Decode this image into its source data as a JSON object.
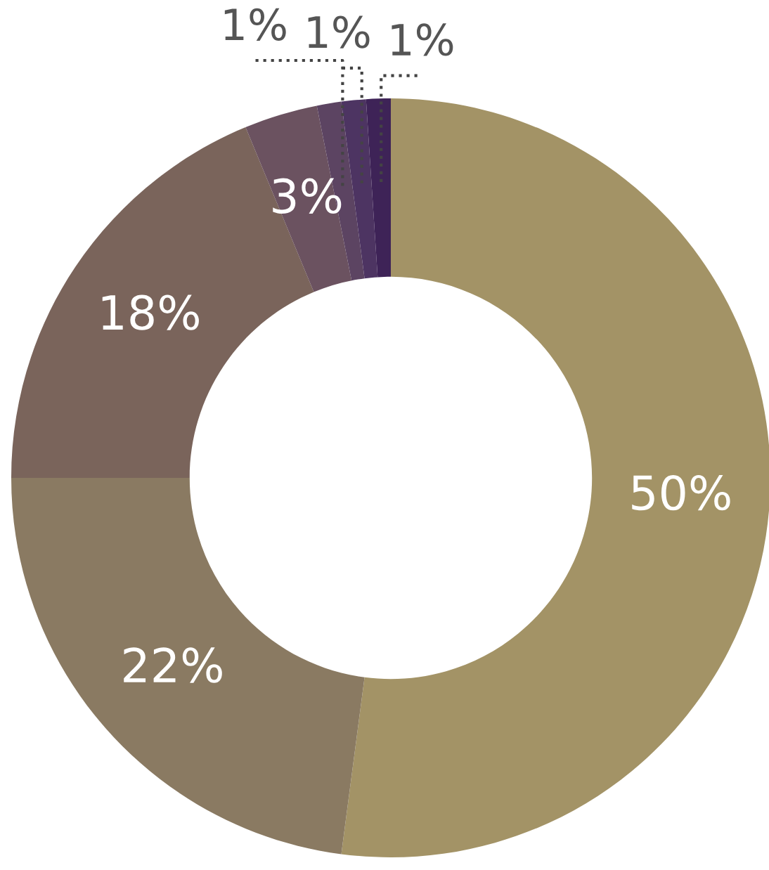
{
  "chart_data": {
    "type": "donut",
    "categories": [
      null,
      null,
      null,
      null,
      null,
      null,
      null
    ],
    "values": [
      50,
      22,
      18,
      3,
      1,
      1,
      1
    ],
    "colors": [
      "#a39366",
      "#8a7a62",
      "#7a645b",
      "#6b5260",
      "#5c4462",
      "#4d3462",
      "#3e2357"
    ],
    "value_labels": [
      "50%",
      "22%",
      "18%",
      "3%",
      "1%",
      "1%",
      "1%"
    ]
  }
}
